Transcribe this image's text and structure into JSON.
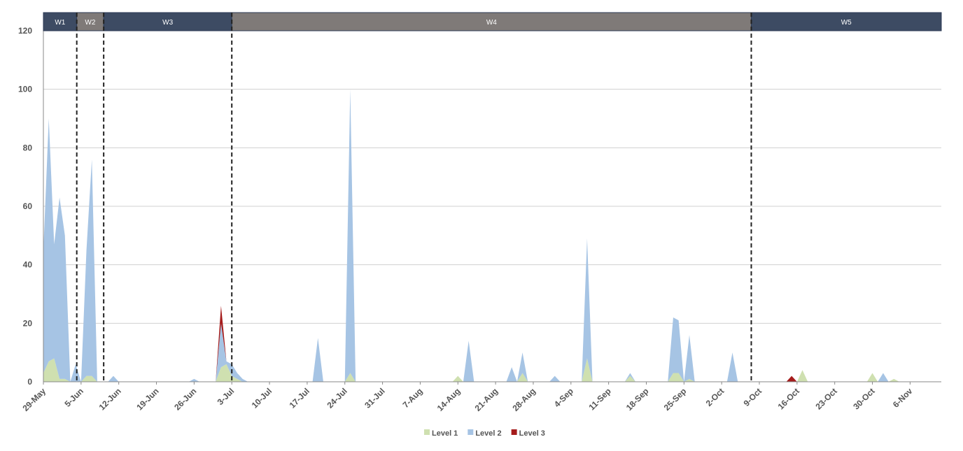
{
  "chart_data": {
    "type": "stacked_area",
    "categories": [
      "29-May",
      null,
      null,
      null,
      null,
      null,
      null,
      "5-Jun",
      null,
      null,
      null,
      null,
      null,
      null,
      "12-Jun",
      null,
      null,
      null,
      null,
      null,
      null,
      "19-Jun",
      null,
      null,
      null,
      null,
      null,
      null,
      "26-Jun",
      null,
      null,
      null,
      null,
      null,
      null,
      "3-Jul",
      null,
      null,
      null,
      null,
      null,
      null,
      "10-Jul",
      null,
      null,
      null,
      null,
      null,
      null,
      "17-Jul",
      null,
      null,
      null,
      null,
      null,
      null,
      "24-Jul",
      null,
      null,
      null,
      null,
      null,
      null,
      "31-Jul",
      null,
      null,
      null,
      null,
      null,
      null,
      "7-Aug",
      null,
      null,
      null,
      null,
      null,
      null,
      "14-Aug",
      null,
      null,
      null,
      null,
      null,
      null,
      "21-Aug",
      null,
      null,
      null,
      null,
      null,
      null,
      "28-Aug",
      null,
      null,
      null,
      null,
      null,
      null,
      "4-Sep",
      null,
      null,
      null,
      null,
      null,
      null,
      "11-Sep",
      null,
      null,
      null,
      null,
      null,
      null,
      "18-Sep",
      null,
      null,
      null,
      null,
      null,
      null,
      "25-Sep",
      null,
      null,
      null,
      null,
      null,
      null,
      "2-Oct",
      null,
      null,
      null,
      null,
      null,
      null,
      "9-Oct",
      null,
      null,
      null,
      null,
      null,
      null,
      "16-Oct",
      null,
      null,
      null,
      null,
      null,
      null,
      "23-Oct",
      null,
      null,
      null,
      null,
      null,
      null,
      "30-Oct",
      null,
      null,
      null,
      null,
      null,
      null,
      "6-Nov",
      null,
      null,
      null,
      null,
      null
    ],
    "series": [
      {
        "name": "Level 1",
        "color": "#cfe0b0",
        "values": [
          3,
          7,
          8,
          1,
          1,
          0,
          0,
          0,
          2,
          2,
          0,
          0,
          0,
          0,
          0,
          0,
          0,
          0,
          0,
          0,
          0,
          0,
          0,
          0,
          0,
          0,
          0,
          0,
          0,
          0,
          0,
          0,
          0,
          5,
          6,
          2,
          1,
          0,
          0,
          0,
          0,
          0,
          0,
          0,
          0,
          0,
          0,
          0,
          0,
          0,
          0,
          0,
          0,
          0,
          0,
          0,
          0,
          3,
          0,
          0,
          0,
          0,
          0,
          0,
          0,
          0,
          0,
          0,
          0,
          0,
          0,
          0,
          0,
          0,
          0,
          0,
          0,
          2,
          0,
          0,
          0,
          0,
          0,
          0,
          0,
          0,
          0,
          0,
          0,
          3,
          0,
          0,
          0,
          0,
          0,
          0,
          0,
          0,
          0,
          0,
          0,
          8,
          0,
          0,
          0,
          0,
          0,
          0,
          0,
          2,
          0,
          0,
          0,
          0,
          0,
          0,
          0,
          3,
          3,
          0,
          1,
          0,
          0,
          0,
          0,
          0,
          0,
          0,
          0,
          0,
          0,
          0,
          0,
          0,
          0,
          0,
          0,
          0,
          0,
          0,
          0,
          4,
          0,
          0,
          0,
          0,
          0,
          0,
          0,
          0,
          0,
          0,
          0,
          0,
          3,
          0,
          0,
          0,
          1,
          0,
          0,
          0,
          0,
          0,
          0,
          0,
          0
        ]
      },
      {
        "name": "Level 2",
        "color": "#a6c4e4",
        "values": [
          42,
          83,
          39,
          62,
          49,
          0,
          6,
          0,
          43,
          74,
          0,
          0,
          0,
          2,
          0,
          0,
          0,
          0,
          0,
          0,
          0,
          0,
          0,
          0,
          0,
          0,
          0,
          0,
          1,
          0,
          0,
          0,
          0,
          15,
          1,
          4,
          2,
          1,
          0,
          0,
          0,
          0,
          0,
          0,
          0,
          0,
          0,
          0,
          0,
          0,
          0,
          15,
          0,
          0,
          0,
          0,
          0,
          97,
          0,
          0,
          0,
          0,
          0,
          0,
          0,
          0,
          0,
          0,
          0,
          0,
          0,
          0,
          0,
          0,
          0,
          0,
          0,
          0,
          0,
          14,
          0,
          0,
          0,
          0,
          0,
          0,
          0,
          5,
          0,
          7,
          0,
          0,
          0,
          0,
          0,
          2,
          0,
          0,
          0,
          0,
          0,
          41,
          0,
          0,
          0,
          0,
          0,
          0,
          0,
          1,
          0,
          0,
          0,
          0,
          0,
          0,
          0,
          19,
          18,
          0,
          15,
          0,
          0,
          0,
          0,
          0,
          0,
          0,
          10,
          0,
          0,
          0,
          0,
          0,
          0,
          0,
          0,
          0,
          0,
          0,
          0,
          0,
          0,
          0,
          0,
          0,
          0,
          0,
          0,
          0,
          0,
          0,
          0,
          0,
          0,
          0,
          3,
          0,
          0,
          0,
          0,
          0,
          0,
          0,
          0,
          0,
          0
        ]
      },
      {
        "name": "Level 3",
        "color": "#a51c1c",
        "values": [
          0,
          0,
          0,
          0,
          0,
          0,
          0,
          0,
          0,
          0,
          0,
          0,
          0,
          0,
          0,
          0,
          0,
          0,
          0,
          0,
          0,
          0,
          0,
          0,
          0,
          0,
          0,
          0,
          0,
          0,
          0,
          0,
          0,
          6,
          0,
          0,
          0,
          0,
          0,
          0,
          0,
          0,
          0,
          0,
          0,
          0,
          0,
          0,
          0,
          0,
          0,
          0,
          0,
          0,
          0,
          0,
          0,
          0,
          0,
          0,
          0,
          0,
          0,
          0,
          0,
          0,
          0,
          0,
          0,
          0,
          0,
          0,
          0,
          0,
          0,
          0,
          0,
          0,
          0,
          0,
          0,
          0,
          0,
          0,
          0,
          0,
          0,
          0,
          0,
          0,
          0,
          0,
          0,
          0,
          0,
          0,
          0,
          0,
          0,
          0,
          0,
          0,
          0,
          0,
          0,
          0,
          0,
          0,
          0,
          0,
          0,
          0,
          0,
          0,
          0,
          0,
          0,
          0,
          0,
          0,
          0,
          0,
          0,
          0,
          0,
          0,
          0,
          0,
          0,
          0,
          0,
          0,
          0,
          0,
          0,
          0,
          0,
          0,
          0,
          2,
          0,
          0,
          0,
          0,
          0,
          0,
          0,
          0,
          0,
          0,
          0,
          0,
          0,
          0,
          0,
          0,
          0,
          0,
          0,
          0,
          0,
          0,
          0,
          0,
          0,
          0,
          0
        ]
      }
    ],
    "phases": [
      {
        "label": "W1",
        "start": 0,
        "end": 6.2,
        "color": "#3d4b63"
      },
      {
        "label": "W2",
        "start": 6.2,
        "end": 11.2,
        "color": "#7f7a78"
      },
      {
        "label": "W3",
        "start": 11.2,
        "end": 35,
        "color": "#3d4b63"
      },
      {
        "label": "W4",
        "start": 35,
        "end": 131.5,
        "color": "#7f7a78"
      },
      {
        "label": "W5",
        "start": 131.5,
        "end": 166.8,
        "color": "#3d4b63"
      }
    ],
    "ylim": [
      0,
      120
    ],
    "yticks": [
      0,
      20,
      40,
      60,
      80,
      100,
      120
    ],
    "grid": true,
    "legend": "bottom"
  }
}
